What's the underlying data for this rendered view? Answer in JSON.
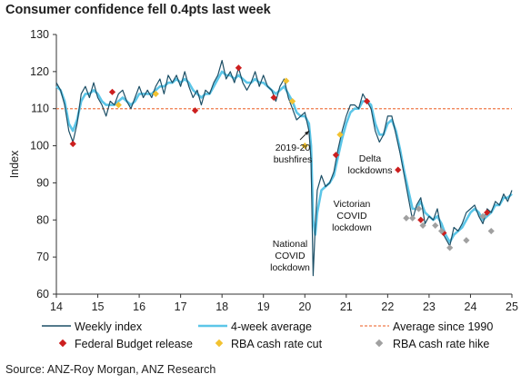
{
  "title": "Consumer confidence fell 0.4pts last week",
  "source": "Source: ANZ-Roy Morgan, ANZ Research",
  "chart_data": {
    "type": "line",
    "title": "Consumer confidence fell 0.4pts last week",
    "xlabel": "",
    "ylabel": "Index",
    "xlim": [
      14,
      25
    ],
    "ylim": [
      60,
      130
    ],
    "x_ticks": [
      "14",
      "15",
      "16",
      "17",
      "18",
      "19",
      "20",
      "21",
      "22",
      "23",
      "24",
      "25"
    ],
    "y_ticks": [
      "60",
      "70",
      "80",
      "90",
      "100",
      "110",
      "120",
      "130"
    ],
    "grid": false,
    "colors": {
      "weekly": "#1c4f66",
      "avg4": "#5cc6e8",
      "average": "#ef7a4a",
      "budget": "#cc1f1f",
      "cut": "#f2c230",
      "hike": "#a0a0a0"
    },
    "average_since_1990": 110,
    "series": [
      {
        "name": "Weekly index",
        "points": [
          [
            14.0,
            117
          ],
          [
            14.1,
            115
          ],
          [
            14.2,
            111
          ],
          [
            14.3,
            104
          ],
          [
            14.4,
            101
          ],
          [
            14.5,
            106
          ],
          [
            14.6,
            114
          ],
          [
            14.7,
            116
          ],
          [
            14.8,
            113
          ],
          [
            14.9,
            117
          ],
          [
            15.0,
            113
          ],
          [
            15.1,
            111
          ],
          [
            15.2,
            108
          ],
          [
            15.3,
            112
          ],
          [
            15.4,
            111
          ],
          [
            15.5,
            114
          ],
          [
            15.6,
            115
          ],
          [
            15.7,
            112
          ],
          [
            15.8,
            110
          ],
          [
            15.9,
            113
          ],
          [
            16.0,
            116
          ],
          [
            16.1,
            113
          ],
          [
            16.2,
            115
          ],
          [
            16.3,
            113
          ],
          [
            16.4,
            116
          ],
          [
            16.5,
            118
          ],
          [
            16.6,
            114
          ],
          [
            16.7,
            119
          ],
          [
            16.8,
            117
          ],
          [
            16.9,
            119
          ],
          [
            17.0,
            116
          ],
          [
            17.1,
            120
          ],
          [
            17.2,
            116
          ],
          [
            17.3,
            113
          ],
          [
            17.4,
            115
          ],
          [
            17.5,
            111
          ],
          [
            17.6,
            115
          ],
          [
            17.7,
            114
          ],
          [
            17.8,
            117
          ],
          [
            17.9,
            119
          ],
          [
            18.0,
            123
          ],
          [
            18.1,
            118
          ],
          [
            18.2,
            120
          ],
          [
            18.3,
            117
          ],
          [
            18.4,
            121
          ],
          [
            18.5,
            117
          ],
          [
            18.6,
            115
          ],
          [
            18.7,
            117
          ],
          [
            18.8,
            120
          ],
          [
            18.9,
            116
          ],
          [
            19.0,
            119
          ],
          [
            19.1,
            116
          ],
          [
            19.2,
            115
          ],
          [
            19.3,
            112
          ],
          [
            19.4,
            116
          ],
          [
            19.5,
            118
          ],
          [
            19.6,
            113
          ],
          [
            19.7,
            110
          ],
          [
            19.8,
            107
          ],
          [
            19.9,
            108
          ],
          [
            20.0,
            109
          ],
          [
            20.1,
            104
          ],
          [
            20.15,
            96
          ],
          [
            20.2,
            65
          ],
          [
            20.25,
            78
          ],
          [
            20.3,
            88
          ],
          [
            20.4,
            92
          ],
          [
            20.5,
            89
          ],
          [
            20.6,
            90
          ],
          [
            20.7,
            93
          ],
          [
            20.8,
            99
          ],
          [
            20.9,
            104
          ],
          [
            21.0,
            108
          ],
          [
            21.1,
            111
          ],
          [
            21.2,
            111
          ],
          [
            21.3,
            110
          ],
          [
            21.4,
            114
          ],
          [
            21.5,
            112
          ],
          [
            21.6,
            110
          ],
          [
            21.7,
            104
          ],
          [
            21.8,
            101
          ],
          [
            21.9,
            103
          ],
          [
            22.0,
            108
          ],
          [
            22.1,
            108
          ],
          [
            22.2,
            103
          ],
          [
            22.3,
            98
          ],
          [
            22.4,
            92
          ],
          [
            22.5,
            86
          ],
          [
            22.6,
            80
          ],
          [
            22.7,
            84
          ],
          [
            22.8,
            86
          ],
          [
            22.9,
            79
          ],
          [
            23.0,
            81
          ],
          [
            23.1,
            80
          ],
          [
            23.2,
            83
          ],
          [
            23.3,
            77
          ],
          [
            23.4,
            75
          ],
          [
            23.5,
            73
          ],
          [
            23.6,
            78
          ],
          [
            23.7,
            77
          ],
          [
            23.8,
            79
          ],
          [
            23.9,
            82
          ],
          [
            24.0,
            83
          ],
          [
            24.1,
            84
          ],
          [
            24.2,
            81
          ],
          [
            24.3,
            79
          ],
          [
            24.4,
            83
          ],
          [
            24.5,
            82
          ],
          [
            24.6,
            85
          ],
          [
            24.7,
            84
          ],
          [
            24.8,
            87
          ],
          [
            24.9,
            85
          ],
          [
            25.0,
            88
          ]
        ]
      },
      {
        "name": "4-week average",
        "points": [
          [
            14.0,
            116
          ],
          [
            14.1,
            115
          ],
          [
            14.2,
            112
          ],
          [
            14.3,
            106
          ],
          [
            14.4,
            104
          ],
          [
            14.5,
            107
          ],
          [
            14.6,
            112
          ],
          [
            14.7,
            114
          ],
          [
            14.8,
            114
          ],
          [
            14.9,
            115
          ],
          [
            15.0,
            114
          ],
          [
            15.1,
            112
          ],
          [
            15.2,
            111
          ],
          [
            15.3,
            111
          ],
          [
            15.4,
            111
          ],
          [
            15.5,
            112
          ],
          [
            15.6,
            113
          ],
          [
            15.7,
            112
          ],
          [
            15.8,
            111
          ],
          [
            15.9,
            112
          ],
          [
            16.0,
            114
          ],
          [
            16.1,
            114
          ],
          [
            16.2,
            114
          ],
          [
            16.3,
            114
          ],
          [
            16.4,
            115
          ],
          [
            16.5,
            116
          ],
          [
            16.6,
            116
          ],
          [
            16.7,
            117
          ],
          [
            16.8,
            117
          ],
          [
            16.9,
            118
          ],
          [
            17.0,
            117
          ],
          [
            17.1,
            118
          ],
          [
            17.2,
            117
          ],
          [
            17.3,
            115
          ],
          [
            17.4,
            114
          ],
          [
            17.5,
            113
          ],
          [
            17.6,
            114
          ],
          [
            17.7,
            114
          ],
          [
            17.8,
            116
          ],
          [
            17.9,
            118
          ],
          [
            18.0,
            120
          ],
          [
            18.1,
            119
          ],
          [
            18.2,
            119
          ],
          [
            18.3,
            118
          ],
          [
            18.4,
            119
          ],
          [
            18.5,
            118
          ],
          [
            18.6,
            117
          ],
          [
            18.7,
            117
          ],
          [
            18.8,
            118
          ],
          [
            18.9,
            117
          ],
          [
            19.0,
            117
          ],
          [
            19.1,
            116
          ],
          [
            19.2,
            115
          ],
          [
            19.3,
            114
          ],
          [
            19.4,
            115
          ],
          [
            19.5,
            116
          ],
          [
            19.6,
            114
          ],
          [
            19.7,
            112
          ],
          [
            19.8,
            109
          ],
          [
            19.9,
            108
          ],
          [
            20.0,
            108
          ],
          [
            20.1,
            106
          ],
          [
            20.15,
            100
          ],
          [
            20.2,
            80
          ],
          [
            20.25,
            76
          ],
          [
            20.3,
            82
          ],
          [
            20.4,
            88
          ],
          [
            20.5,
            89
          ],
          [
            20.6,
            90
          ],
          [
            20.7,
            92
          ],
          [
            20.8,
            97
          ],
          [
            20.9,
            102
          ],
          [
            21.0,
            106
          ],
          [
            21.1,
            109
          ],
          [
            21.2,
            110
          ],
          [
            21.3,
            110
          ],
          [
            21.4,
            112
          ],
          [
            21.5,
            112
          ],
          [
            21.6,
            111
          ],
          [
            21.7,
            106
          ],
          [
            21.8,
            103
          ],
          [
            21.9,
            103
          ],
          [
            22.0,
            106
          ],
          [
            22.1,
            107
          ],
          [
            22.2,
            104
          ],
          [
            22.3,
            99
          ],
          [
            22.4,
            93
          ],
          [
            22.5,
            88
          ],
          [
            22.6,
            83
          ],
          [
            22.7,
            83
          ],
          [
            22.8,
            85
          ],
          [
            22.9,
            82
          ],
          [
            23.0,
            81
          ],
          [
            23.1,
            80
          ],
          [
            23.2,
            81
          ],
          [
            23.3,
            79
          ],
          [
            23.4,
            76
          ],
          [
            23.5,
            74
          ],
          [
            23.6,
            76
          ],
          [
            23.7,
            77
          ],
          [
            23.8,
            78
          ],
          [
            23.9,
            80
          ],
          [
            24.0,
            82
          ],
          [
            24.1,
            83
          ],
          [
            24.2,
            82
          ],
          [
            24.3,
            80
          ],
          [
            24.4,
            81
          ],
          [
            24.5,
            82
          ],
          [
            24.6,
            84
          ],
          [
            24.7,
            84
          ],
          [
            24.8,
            86
          ],
          [
            24.9,
            86
          ],
          [
            25.0,
            87
          ]
        ]
      }
    ],
    "events": {
      "budget": [
        [
          14.4,
          100.5
        ],
        [
          15.35,
          114.5
        ],
        [
          17.35,
          109.5
        ],
        [
          18.4,
          121
        ],
        [
          19.25,
          113
        ],
        [
          20.75,
          97.5
        ],
        [
          21.5,
          112
        ],
        [
          22.25,
          93.5
        ],
        [
          22.8,
          80
        ],
        [
          23.35,
          76.5
        ],
        [
          24.4,
          82
        ]
      ],
      "cut": [
        [
          15.5,
          111
        ],
        [
          16.4,
          114
        ],
        [
          19.55,
          117.5
        ],
        [
          19.7,
          112
        ],
        [
          20.0,
          100
        ],
        [
          20.85,
          103
        ]
      ],
      "hike": [
        [
          22.45,
          80.5
        ],
        [
          22.6,
          80.5
        ],
        [
          22.75,
          83
        ],
        [
          22.85,
          78.5
        ],
        [
          23.15,
          78.5
        ],
        [
          23.3,
          77
        ],
        [
          23.5,
          72.5
        ],
        [
          23.9,
          74.5
        ],
        [
          24.3,
          81
        ],
        [
          24.5,
          77
        ]
      ]
    },
    "annotations": [
      {
        "lines": [
          "2019-20",
          "bushfires"
        ]
      },
      {
        "lines": [
          "National",
          "COVID",
          "lockdown"
        ]
      },
      {
        "lines": [
          "Victorian",
          "COVID",
          "lockdown"
        ]
      },
      {
        "lines": [
          "Delta",
          "lockdowns"
        ]
      }
    ],
    "legend": {
      "weekly": "Weekly index",
      "avg4": "4-week average",
      "average": "Average since 1990",
      "budget": "Federal Budget release",
      "cut": "RBA cash rate cut",
      "hike": "RBA cash rate hike"
    }
  }
}
